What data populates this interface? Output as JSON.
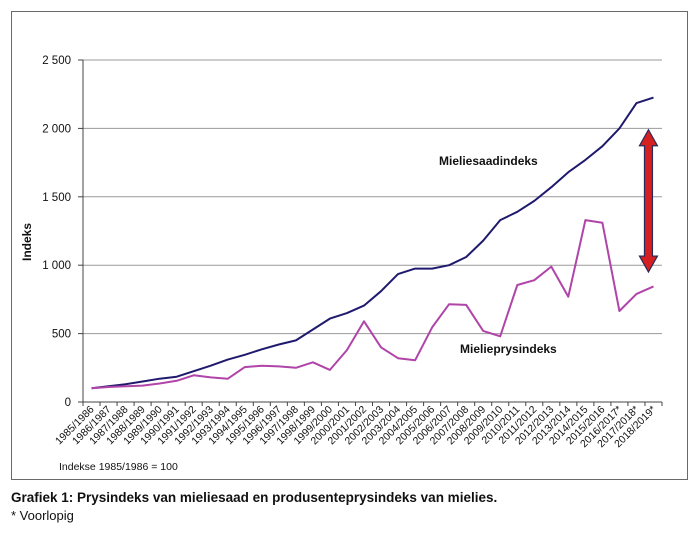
{
  "caption": "Grafiek 1: Prysindeks van mieliesaad en produsenteprysindeks van mielies.",
  "footnote": "* Voorlopig",
  "chart_data": {
    "type": "line",
    "title": "",
    "xlabel": "",
    "ylabel": "Indeks",
    "ylim": [
      0,
      2500
    ],
    "yticks": [
      0,
      500,
      1000,
      1500,
      2000,
      2500
    ],
    "ytick_labels": [
      "0",
      "500",
      "1 000",
      "1 500",
      "2 000",
      "2 500"
    ],
    "grid": "horizontal",
    "index_note": "Indekse 1985/1986 = 100",
    "categories": [
      "1985/1986",
      "1986/1987",
      "1987/1988",
      "1988/1989",
      "1989/1990",
      "1990/1991",
      "1991/1992",
      "1992/1993",
      "1993/1994",
      "1994/1995",
      "1995/1996",
      "1996/1997",
      "1997/1998",
      "1998/1999",
      "1999/2000",
      "2000/2001",
      "2001/2002",
      "2002/2003",
      "2003/2004",
      "2004/2005",
      "2005/2006",
      "2006/2007",
      "2007/2008",
      "2008/2009",
      "2009/2010",
      "2010/2011",
      "2011/2012",
      "2012/2013",
      "2013/2014",
      "2014/2015",
      "2015/2016",
      "2016/2017*",
      "2017/2018*",
      "2018/2019*"
    ],
    "series": [
      {
        "name": "Mieliesaadindeks",
        "color": "#1f1a6e",
        "values": [
          100,
          115,
          130,
          150,
          170,
          185,
          225,
          265,
          310,
          345,
          385,
          420,
          450,
          530,
          610,
          650,
          705,
          810,
          935,
          975,
          975,
          1000,
          1060,
          1180,
          1330,
          1390,
          1470,
          1570,
          1680,
          1770,
          1870,
          2000,
          2185,
          2225
        ]
      },
      {
        "name": "Mielieprysindeks",
        "color": "#b044a8",
        "values": [
          100,
          110,
          115,
          120,
          135,
          155,
          195,
          180,
          170,
          255,
          265,
          260,
          250,
          290,
          235,
          380,
          590,
          400,
          320,
          305,
          545,
          715,
          710,
          520,
          480,
          855,
          890,
          990,
          770,
          1330,
          1310,
          665,
          790,
          845
        ]
      }
    ],
    "annotation": {
      "type": "double-arrow",
      "color": "#d42020",
      "x_category": "2017/2018*",
      "y_from": 950,
      "y_to": 1990
    }
  }
}
